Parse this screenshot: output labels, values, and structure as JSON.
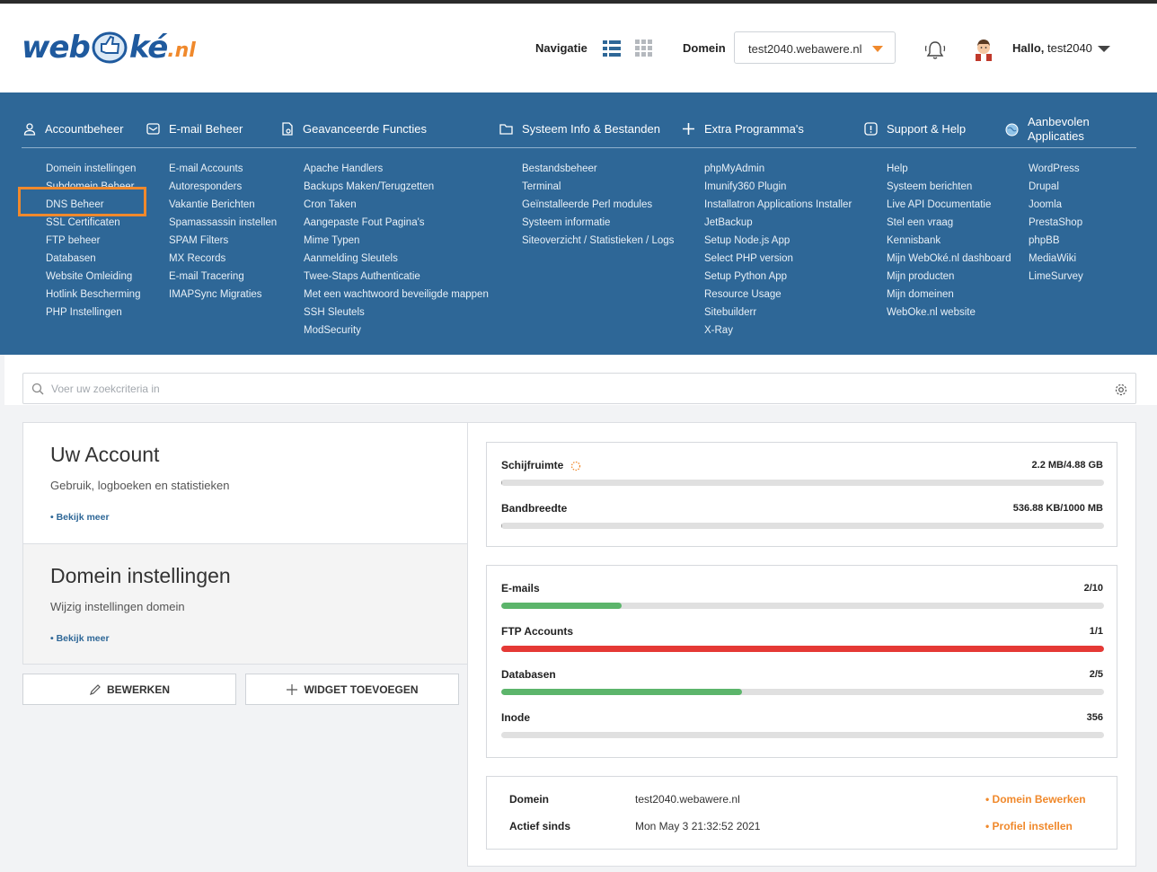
{
  "header": {
    "logo_text": "webOké.nl",
    "logo_part1": "web",
    "logo_part2": "ké",
    "logo_part3": ".nl",
    "nav_label": "Navigatie",
    "domain_label": "Domein",
    "domain_value": "test2040.webawere.nl",
    "greeting": "Hallo,",
    "username": "test2040"
  },
  "menu": {
    "columns": [
      {
        "title": "Accountbeheer",
        "icon": "user-icon",
        "items": [
          "Domein instellingen",
          "Subdomein Beheer",
          "DNS Beheer",
          "SSL Certificaten",
          "FTP beheer",
          "Databasen",
          "Website Omleiding",
          "Hotlink Bescherming",
          "PHP Instellingen"
        ]
      },
      {
        "title": "E-mail Beheer",
        "icon": "mail-icon",
        "items": [
          "E-mail Accounts",
          "Autoresponders",
          "Vakantie Berichten",
          "Spamassassin instellen",
          "SPAM Filters",
          "MX Records",
          "E-mail Tracering",
          "IMAPSync Migraties"
        ]
      },
      {
        "title": "Geavanceerde Functies",
        "icon": "advanced-file-icon",
        "items": [
          "Apache Handlers",
          "Backups Maken/Terugzetten",
          "Cron Taken",
          "Aangepaste Fout Pagina's",
          "Mime Typen",
          "Aanmelding Sleutels",
          "Twee-Staps Authenticatie",
          "Met een wachtwoord beveiligde mappen",
          "SSH Sleutels",
          "ModSecurity"
        ]
      },
      {
        "title": "Systeem Info & Bestanden",
        "icon": "folder-icon",
        "items": [
          "Bestandsbeheer",
          "Terminal",
          "Geïnstalleerde Perl modules",
          "Systeem informatie",
          "Siteoverzicht / Statistieken / Logs"
        ]
      },
      {
        "title": "Extra Programma's",
        "icon": "plus-icon",
        "items": [
          "phpMyAdmin",
          "Imunify360 Plugin",
          "Installatron Applications Installer",
          "JetBackup",
          "Setup Node.js App",
          "Select PHP version",
          "Setup Python App",
          "Resource Usage",
          "Sitebuilderr",
          "X-Ray"
        ]
      },
      {
        "title": "Support & Help",
        "icon": "alert-icon",
        "items": [
          "Help",
          "Systeem berichten",
          "Live API Documentatie",
          "Stel een vraag",
          "Kennisbank",
          "Mijn WebOké.nl dashboard",
          "Mijn producten",
          "Mijn domeinen",
          "WebOke.nl website"
        ]
      },
      {
        "title_line1": "Aanbevolen",
        "title_line2": "Applicaties",
        "icon": "globe-icon",
        "items": [
          "WordPress",
          "Drupal",
          "Joomla",
          "PrestaShop",
          "phpBB",
          "MediaWiki",
          "LimeSurvey"
        ]
      }
    ]
  },
  "search": {
    "placeholder": "Voer uw zoekcriteria in"
  },
  "account_card": {
    "title": "Uw Account",
    "subtitle": "Gebruik, logboeken en statistieken",
    "link": "• Bekijk meer"
  },
  "domain_card": {
    "title": "Domein instellingen",
    "subtitle": "Wijzig instellingen domein",
    "link": "• Bekijk meer"
  },
  "buttons": {
    "edit": "BEWERKEN",
    "add_widget": "WIDGET TOEVOEGEN"
  },
  "usage": {
    "disk_label": "Schijfruimte",
    "disk_value": "2.2 MB/4.88 GB",
    "disk_fraction": 0.0005,
    "bandwidth_label": "Bandbreedte",
    "bandwidth_value": "536.88 KB/1000 MB",
    "bandwidth_fraction": 0.0005
  },
  "counts": {
    "emails_label": "E-mails",
    "emails_value": "2/10",
    "emails_fraction": 0.2,
    "emails_color": "#5cb56b",
    "ftp_label": "FTP Accounts",
    "ftp_value": "1/1",
    "ftp_fraction": 1.0,
    "ftp_color": "#e53935",
    "db_label": "Databasen",
    "db_value": "2/5",
    "db_fraction": 0.4,
    "db_color": "#5cb56b",
    "inode_label": "Inode",
    "inode_value": "356",
    "inode_fraction": 0.0
  },
  "info": {
    "domain_key": "Domein",
    "domain_val": "test2040.webawere.nl",
    "domain_link": "• Domein Bewerken",
    "since_key": "Actief sinds",
    "since_val": "Mon May 3 21:32:52 2021",
    "since_link": "• Profiel instellen"
  },
  "colors": {
    "menu_bg": "#2e6797",
    "accent": "#f0892c",
    "brand_blue": "#1f5a9e"
  }
}
